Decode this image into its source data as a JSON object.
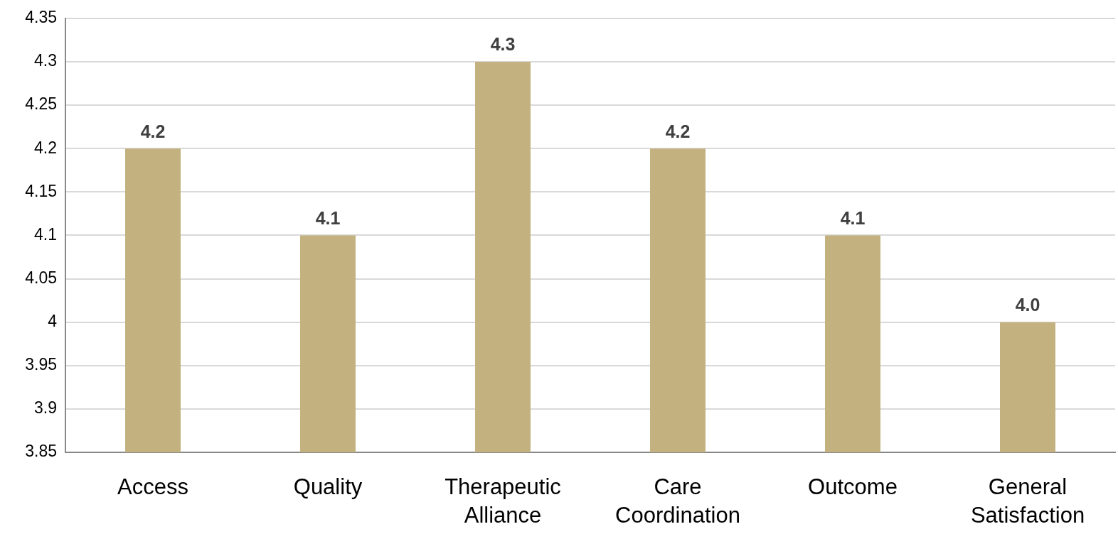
{
  "chart_data": {
    "type": "bar",
    "categories": [
      "Access",
      "Quality",
      "Therapeutic Alliance",
      "Care Coordination",
      "Outcome",
      "General Satisfaction"
    ],
    "values": [
      4.2,
      4.1,
      4.3,
      4.2,
      4.1,
      4.0
    ],
    "value_labels": [
      "4.2",
      "4.1",
      "4.3",
      "4.2",
      "4.1",
      "4.0"
    ],
    "color": "#c3b27f",
    "ylim": [
      3.85,
      4.35
    ],
    "yticks": [
      3.85,
      3.9,
      3.95,
      4,
      4.05,
      4.1,
      4.15,
      4.2,
      4.25,
      4.3,
      4.35
    ],
    "grid": "y"
  }
}
